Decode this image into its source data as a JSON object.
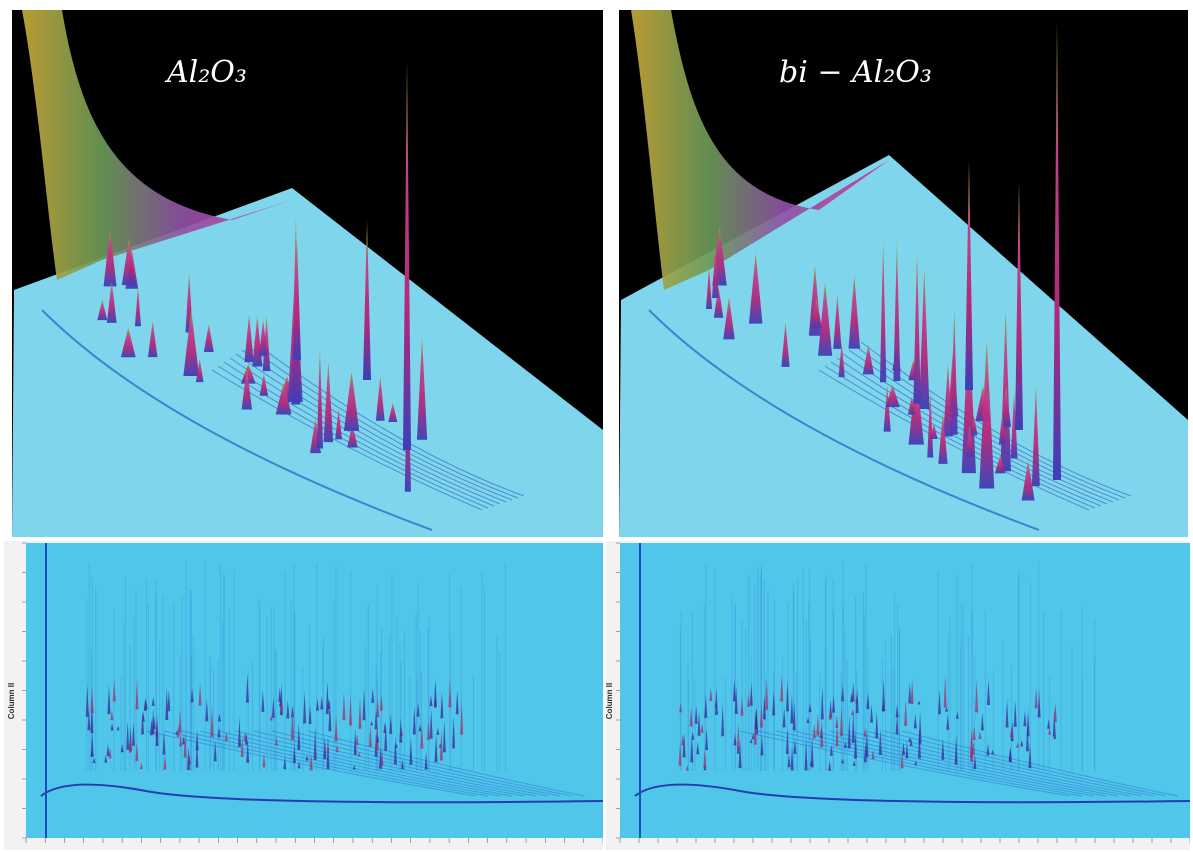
{
  "panels": [
    {
      "label": "Al₂O₃",
      "axis_label": "Column II"
    },
    {
      "label": "bi − Al₂O₃",
      "axis_label": "Column II"
    }
  ]
}
